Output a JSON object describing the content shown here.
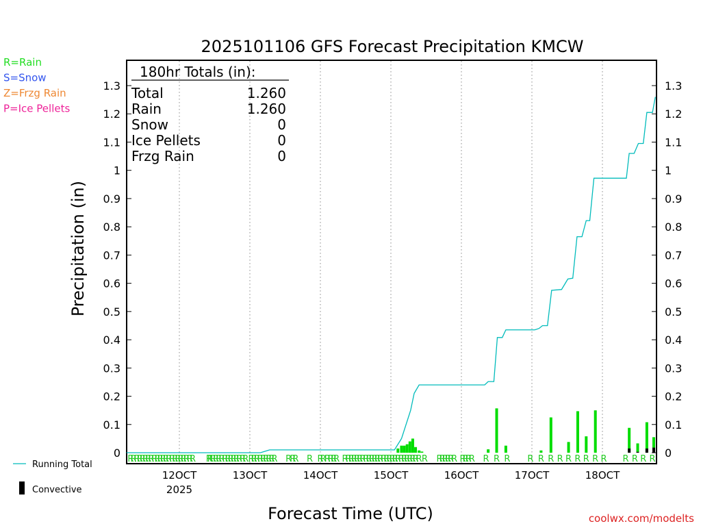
{
  "chart_data": {
    "type": "bar",
    "title": "2025101106 GFS Forecast Precipitation KMCW",
    "xlabel": "Forecast Time (UTC)",
    "ylabel": "Precipitation (in)",
    "ylim": [
      0,
      1.38
    ],
    "yticks": [
      0,
      0.1,
      0.2,
      0.3,
      0.4,
      0.5,
      0.6,
      0.7,
      0.8,
      0.9,
      1,
      1.1,
      1.2,
      1.3
    ],
    "ytick_labels": [
      "0",
      "0.1",
      "0.2",
      "0.3",
      "0.4",
      "0.5",
      "0.6",
      "0.7",
      "0.8",
      "0.9",
      "1",
      "1.1",
      "1.2",
      "1.3"
    ],
    "xlim_days": [
      11.25,
      18.75
    ],
    "xticks": [
      {
        "day": 12,
        "label": "12OCT",
        "sublabel": "2025"
      },
      {
        "day": 13,
        "label": "13OCT",
        "sublabel": ""
      },
      {
        "day": 14,
        "label": "14OCT",
        "sublabel": ""
      },
      {
        "day": 15,
        "label": "15OCT",
        "sublabel": ""
      },
      {
        "day": 16,
        "label": "16OCT",
        "sublabel": ""
      },
      {
        "day": 17,
        "label": "17OCT",
        "sublabel": ""
      },
      {
        "day": 18,
        "label": "18OCT",
        "sublabel": ""
      }
    ],
    "totals_box": {
      "header": "180hr Totals (in):",
      "rows": [
        {
          "label": "Total",
          "value": "1.260"
        },
        {
          "label": "Rain",
          "value": "1.260"
        },
        {
          "label": "Snow",
          "value": "0"
        },
        {
          "label": "Ice Pellets",
          "value": "0"
        },
        {
          "label": "Frzg Rain",
          "value": "0"
        }
      ]
    },
    "ptype_legend": [
      {
        "text": "R=Rain",
        "color": "#22dd22"
      },
      {
        "text": "S=Snow",
        "color": "#3355ee"
      },
      {
        "text": "Z=Frzg Rain",
        "color": "#ee8833"
      },
      {
        "text": "P=Ice Pellets",
        "color": "#ee2299"
      }
    ],
    "line_legend": {
      "running_total": "Running Total",
      "convective": "Convective"
    },
    "precip_type_letter": "R",
    "precip_type_days": [
      11.31,
      11.35,
      11.4,
      11.44,
      11.48,
      11.52,
      11.56,
      11.6,
      11.65,
      11.69,
      11.73,
      11.77,
      11.81,
      11.85,
      11.9,
      11.94,
      11.98,
      12.02,
      12.06,
      12.1,
      12.15,
      12.19,
      12.42,
      12.44,
      12.48,
      12.52,
      12.56,
      12.6,
      12.65,
      12.69,
      12.73,
      12.77,
      12.81,
      12.85,
      12.9,
      12.94,
      13.02,
      13.06,
      13.1,
      13.15,
      13.19,
      13.23,
      13.27,
      13.31,
      13.35,
      13.55,
      13.61,
      13.65,
      13.85,
      14.0,
      14.04,
      14.1,
      14.15,
      14.19,
      14.23,
      14.35,
      14.4,
      14.44,
      14.48,
      14.52,
      14.56,
      14.6,
      14.65,
      14.69,
      14.73,
      14.77,
      14.81,
      14.85,
      14.9,
      14.94,
      14.98,
      15.02,
      15.06,
      15.1,
      15.15,
      15.19,
      15.23,
      15.27,
      15.31,
      15.35,
      15.4,
      15.48,
      15.69,
      15.73,
      15.77,
      15.81,
      15.85,
      15.9,
      16.02,
      16.06,
      16.1,
      16.15,
      16.35,
      16.5,
      16.65,
      16.98,
      17.13,
      17.27,
      17.4,
      17.52,
      17.65,
      17.77,
      17.9,
      18.02,
      18.33,
      18.46,
      18.58,
      18.71
    ],
    "series": [
      {
        "name": "Precipitation",
        "color": "#00dd00",
        "bars": [
          {
            "day": 15.1,
            "value": 0.015
          },
          {
            "day": 15.15,
            "value": 0.025
          },
          {
            "day": 15.19,
            "value": 0.025
          },
          {
            "day": 15.23,
            "value": 0.03
          },
          {
            "day": 15.27,
            "value": 0.04
          },
          {
            "day": 15.31,
            "value": 0.05
          },
          {
            "day": 15.35,
            "value": 0.02
          },
          {
            "day": 15.4,
            "value": 0.008
          },
          {
            "day": 15.44,
            "value": 0.004
          },
          {
            "day": 16.38,
            "value": 0.012
          },
          {
            "day": 16.5,
            "value": 0.157
          },
          {
            "day": 16.63,
            "value": 0.025
          },
          {
            "day": 17.13,
            "value": 0.008
          },
          {
            "day": 17.27,
            "value": 0.125
          },
          {
            "day": 17.52,
            "value": 0.038
          },
          {
            "day": 17.65,
            "value": 0.147
          },
          {
            "day": 17.77,
            "value": 0.058
          },
          {
            "day": 17.9,
            "value": 0.15
          },
          {
            "day": 18.38,
            "value": 0.088
          },
          {
            "day": 18.5,
            "value": 0.033
          },
          {
            "day": 18.63,
            "value": 0.108
          },
          {
            "day": 18.75,
            "value": 0.055
          }
        ]
      },
      {
        "name": "Convective",
        "color": "#000000",
        "bars": [
          {
            "day": 18.38,
            "value": 0.015
          },
          {
            "day": 18.5,
            "value": 0.003
          },
          {
            "day": 18.63,
            "value": 0.015
          },
          {
            "day": 18.75,
            "value": 0.018
          }
        ]
      },
      {
        "name": "Running Total",
        "color": "#00bbbb",
        "points": [
          [
            11.25,
            0
          ],
          [
            13.15,
            0
          ],
          [
            13.28,
            0.01
          ],
          [
            15.05,
            0.01
          ],
          [
            15.15,
            0.05
          ],
          [
            15.28,
            0.15
          ],
          [
            15.33,
            0.21
          ],
          [
            15.4,
            0.24
          ],
          [
            16.33,
            0.24
          ],
          [
            16.38,
            0.252
          ],
          [
            16.46,
            0.252
          ],
          [
            16.51,
            0.408
          ],
          [
            16.58,
            0.408
          ],
          [
            16.63,
            0.435
          ],
          [
            17.04,
            0.435
          ],
          [
            17.1,
            0.44
          ],
          [
            17.15,
            0.45
          ],
          [
            17.22,
            0.45
          ],
          [
            17.28,
            0.575
          ],
          [
            17.42,
            0.578
          ],
          [
            17.51,
            0.615
          ],
          [
            17.58,
            0.618
          ],
          [
            17.64,
            0.765
          ],
          [
            17.71,
            0.765
          ],
          [
            17.77,
            0.822
          ],
          [
            17.82,
            0.822
          ],
          [
            17.88,
            0.972
          ],
          [
            18.34,
            0.972
          ],
          [
            18.38,
            1.06
          ],
          [
            18.45,
            1.06
          ],
          [
            18.51,
            1.095
          ],
          [
            18.58,
            1.095
          ],
          [
            18.63,
            1.205
          ],
          [
            18.71,
            1.205
          ],
          [
            18.75,
            1.26
          ]
        ]
      }
    ]
  },
  "footer": {
    "credit": "coolwx.com/modelts"
  }
}
